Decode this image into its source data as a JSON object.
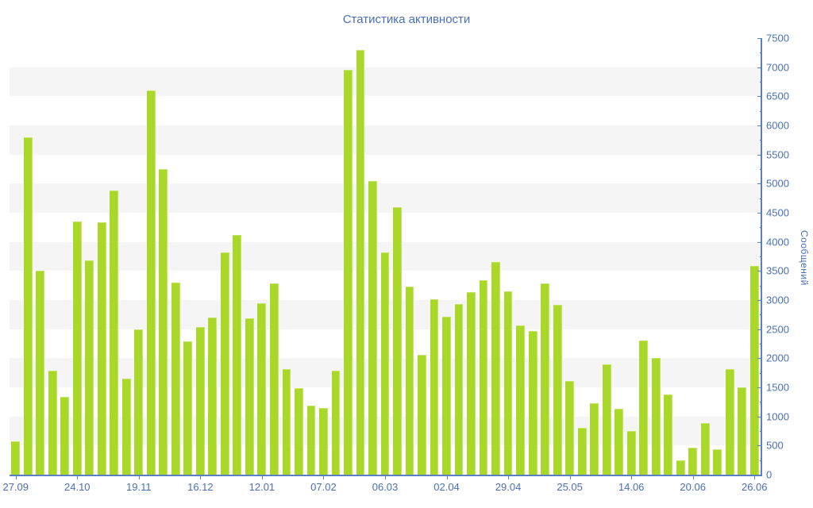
{
  "title": "Статистика активности",
  "chart_data": {
    "type": "bar",
    "title": "Статистика активности",
    "ylabel": "Сообщений",
    "xlabel": "",
    "ylim": [
      0,
      7500
    ],
    "y_tick_step": 500,
    "y_minor_tick_step": 250,
    "legend": "none",
    "grid": "zebra-horizontal-bands",
    "x_label_every_n_bars": 5,
    "x_tick_labels": [
      "27.09",
      "24.10",
      "19.11",
      "16.12",
      "12.01",
      "07.02",
      "06.03",
      "02.04",
      "29.04",
      "25.05",
      "14.06",
      "20.06",
      "26.06"
    ],
    "values": [
      570,
      5800,
      3500,
      1780,
      1330,
      4350,
      3680,
      4330,
      4880,
      1650,
      2500,
      6600,
      5250,
      3300,
      2290,
      2540,
      2700,
      3820,
      4120,
      2680,
      2940,
      3280,
      1820,
      1480,
      1180,
      1140,
      1790,
      6950,
      7300,
      5050,
      3820,
      4600,
      3230,
      2060,
      3020,
      2720,
      2930,
      3130,
      3340,
      3660,
      3150,
      2560,
      2470,
      3280,
      2920,
      1610,
      800,
      1230,
      1890,
      1130,
      750,
      2300,
      2000,
      1380,
      250,
      460,
      890,
      440,
      1820,
      1500,
      3580
    ],
    "colors": {
      "bar": "#a9d829",
      "bar_edge": "#c4e56a",
      "axis": "#5b7fc4",
      "tick_label": "#4a6fb8",
      "title": "#4a6fb8",
      "stripe": "#f5f5f5",
      "background": "#ffffff"
    }
  }
}
